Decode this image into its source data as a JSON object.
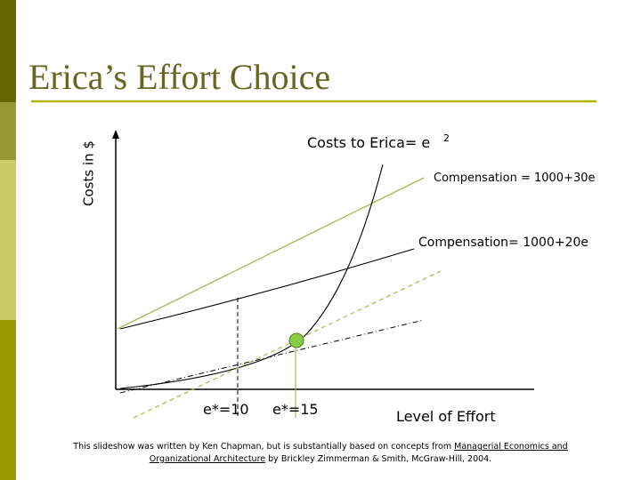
{
  "title": "Erica’s Effort Choice",
  "y_axis_label": "Costs in $",
  "x_axis_label": "Level of Effort",
  "cost_label": {
    "text": "Costs to Erica= e",
    "superscript": "2"
  },
  "compensation_30_label": "Compensation = 1000+30e",
  "compensation_20_label": "Compensation= 1000+20e",
  "marker_labels": [
    "e*=10",
    "e*=15"
  ],
  "footer": {
    "lines": [
      [
        "This slideshow was written by Ken Chapman, but is substantially based on concepts from ",
        "Managerial Economics and"
      ],
      [
        "Organizational Architecture",
        " by Brickley Zimmerman & Smith, McGraw-Hill, 2004."
      ]
    ]
  }
}
